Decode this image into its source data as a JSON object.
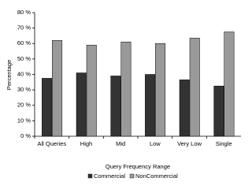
{
  "chart_data": {
    "type": "bar",
    "x_label": "Query Frequency Range",
    "y_label": "Percentage",
    "categories": [
      "All Queries",
      "High",
      "Mid",
      "Low",
      "Very Low",
      "Single"
    ],
    "series": [
      {
        "name": "Commercial",
        "color": "#333333",
        "values": [
          37.5,
          41,
          39,
          40,
          36.5,
          32.5
        ]
      },
      {
        "name": "NonCommercial",
        "color": "#999999",
        "values": [
          62,
          59,
          61,
          60,
          63.5,
          67.5
        ]
      }
    ],
    "ylim": [
      0,
      80
    ],
    "yticks": [
      {
        "value": 0,
        "label": "0 %"
      },
      {
        "value": 10,
        "label": "10 %"
      },
      {
        "value": 20,
        "label": "20 %"
      },
      {
        "value": 30,
        "label": "30 %"
      },
      {
        "value": 40,
        "label": "40 %"
      },
      {
        "value": 50,
        "label": "50 %"
      },
      {
        "value": 60,
        "label": "60 %"
      },
      {
        "value": 70,
        "label": "70 %"
      },
      {
        "value": 80,
        "label": "80 %"
      }
    ],
    "grid": false,
    "legend": "bottom"
  }
}
